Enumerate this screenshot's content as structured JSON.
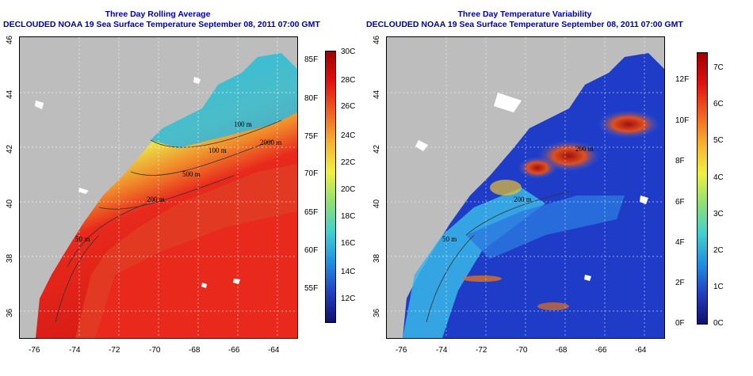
{
  "left": {
    "title": "Three Day Rolling Average",
    "subtitle": "DECLOUDED NOAA 19 Sea Surface Temperature September 08, 2011 07:00 GMT",
    "colorbar_f_labels": [
      "85F",
      "80F",
      "75F",
      "70F",
      "65F",
      "60F",
      "55F"
    ],
    "colorbar_c_labels": [
      "30C",
      "28C",
      "26C",
      "24C",
      "22C",
      "20C",
      "18C",
      "16C",
      "14C",
      "12C"
    ],
    "contour_labels": [
      "100 m",
      "2000 m",
      "100 m",
      "500 m",
      "200 m",
      "50 m"
    ]
  },
  "right": {
    "title": "Three Day Temperature Variability",
    "subtitle": "DECLOUDED NOAA 19 Sea Surface Temperature September 08, 2011 07:00 GMT",
    "colorbar_f_labels": [
      "12F",
      "10F",
      "8F",
      "6F",
      "4F",
      "2F",
      "0F"
    ],
    "colorbar_c_labels": [
      "7C",
      "6C",
      "5C",
      "4C",
      "3C",
      "2C",
      "1C",
      "0C"
    ],
    "contour_labels": [
      "200 m",
      "200 m",
      "50 m"
    ]
  },
  "axes": {
    "longitude_ticks": [
      "-76",
      "-74",
      "-72",
      "-70",
      "-68",
      "-66",
      "-64"
    ],
    "latitude_ticks": [
      "46",
      "44",
      "42",
      "40",
      "38",
      "36"
    ]
  },
  "colors": {
    "title_blue": "#0000aa",
    "land_gray": "#bdbdbd",
    "warm_red": "#e8291c",
    "cool_blue": "#1e3cc8"
  }
}
